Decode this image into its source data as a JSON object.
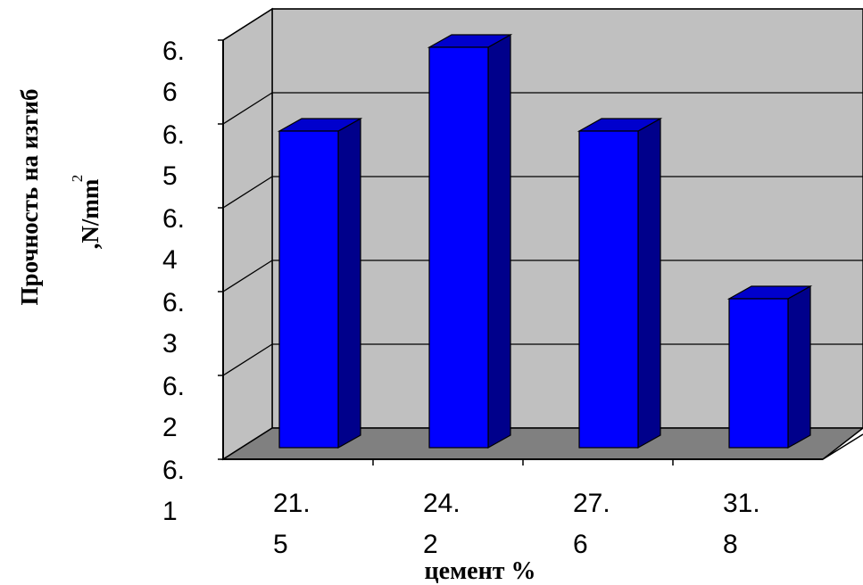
{
  "chart_data": {
    "type": "bar",
    "categories": [
      "21.5",
      "24.2",
      "27.6",
      "31.8"
    ],
    "category_labels": [
      [
        "21.",
        "5"
      ],
      [
        "24.",
        "2"
      ],
      [
        "27.",
        "6"
      ],
      [
        "31.",
        "8"
      ]
    ],
    "values": [
      6.5,
      6.6,
      6.5,
      6.3
    ],
    "ylim": [
      6.1,
      6.6
    ],
    "yticks": [
      6.1,
      6.2,
      6.3,
      6.4,
      6.5,
      6.6
    ],
    "ytick_labels": [
      [
        "6.",
        "1"
      ],
      [
        "6.",
        "2"
      ],
      [
        "6.",
        "3"
      ],
      [
        "6.",
        "4"
      ],
      [
        "6.",
        "5"
      ],
      [
        "6.",
        "6"
      ]
    ],
    "xlabel": "цемент %",
    "ylabel_line1": "Прочность на изгиб",
    "ylabel_line2": ",N/mm",
    "ylabel_superscript": "2",
    "grid": true,
    "style": "3d-column",
    "colors": {
      "bar_front": "#0000ff",
      "bar_side": "#00008b",
      "bar_top": "#0000cd",
      "back_wall": "#c0c0c0",
      "floor": "#808080"
    }
  }
}
